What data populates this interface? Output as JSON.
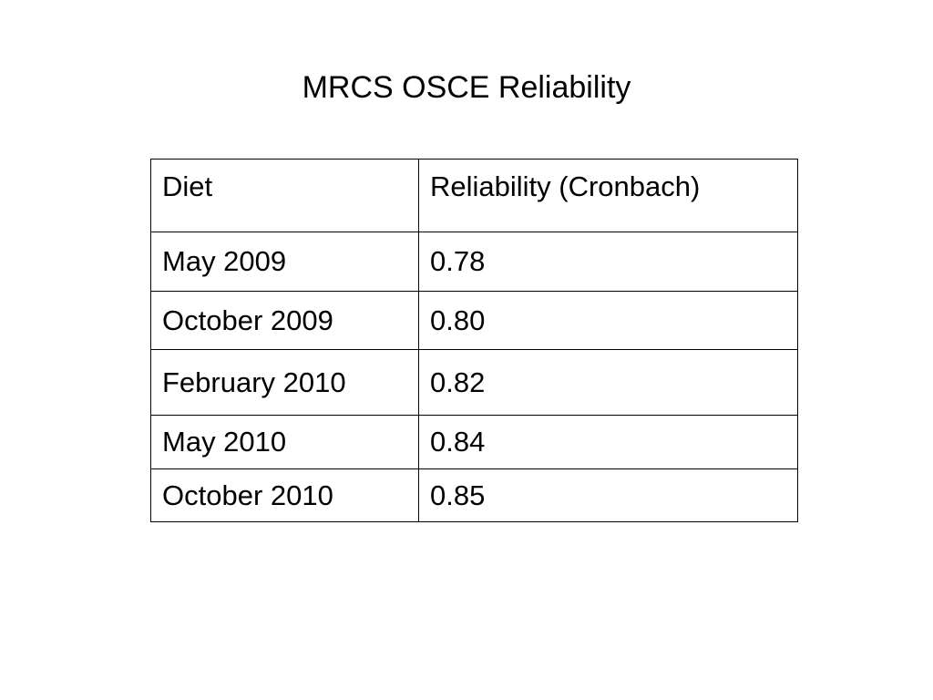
{
  "slide": {
    "title": "MRCS OSCE Reliability"
  },
  "table": {
    "headers": [
      "Diet",
      "Reliability (Cronbach)"
    ],
    "rows": [
      [
        "May 2009",
        "0.78"
      ],
      [
        "October 2009",
        "0.80"
      ],
      [
        "February 2010",
        "0.82"
      ],
      [
        "May 2010",
        "0.84"
      ],
      [
        "October 2010",
        "0.85"
      ]
    ]
  }
}
